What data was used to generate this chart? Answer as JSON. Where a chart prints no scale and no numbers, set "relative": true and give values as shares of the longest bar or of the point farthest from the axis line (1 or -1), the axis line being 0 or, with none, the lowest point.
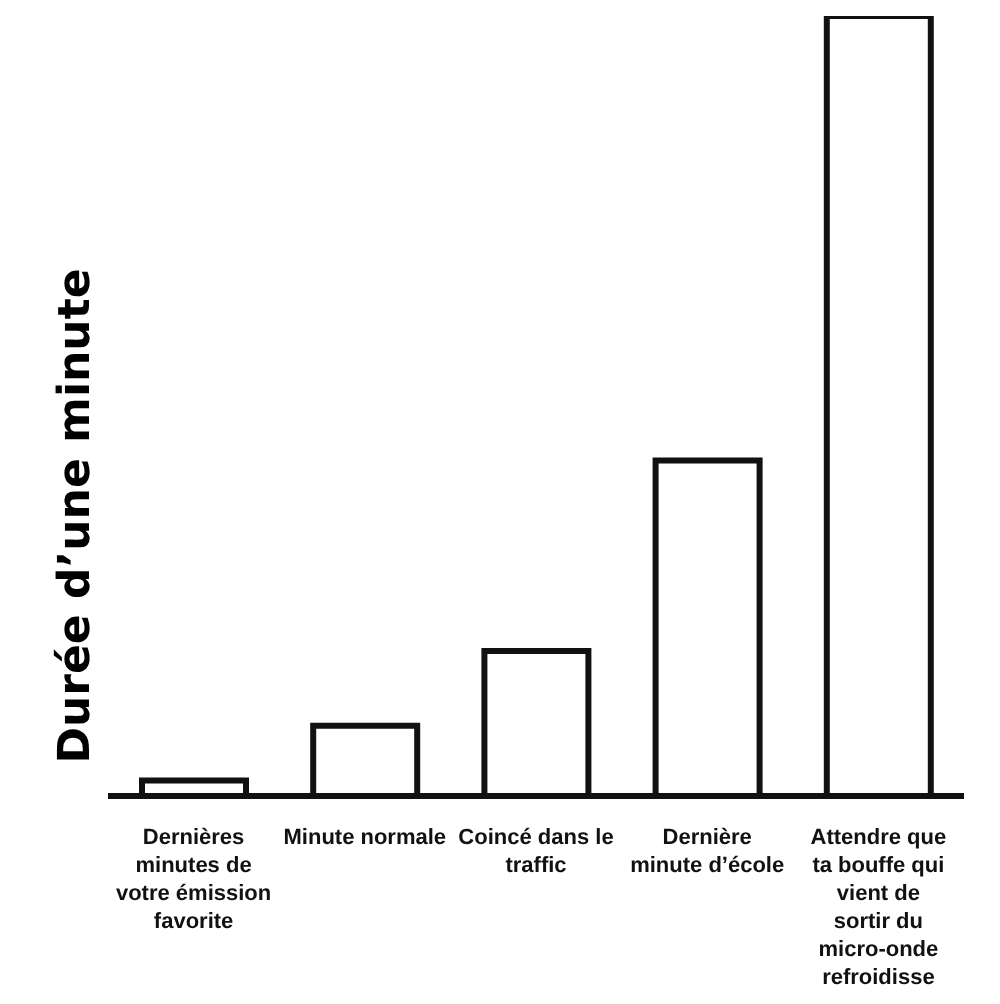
{
  "chart_data": {
    "type": "bar",
    "ylabel": "Durée d’une minute",
    "relative": true,
    "categories": [
      "Dernières minutes de votre émission favorite",
      "Minute normale",
      "Coincé dans le traffic",
      "Dernière minute d’école",
      "Attendre que ta bouffe qui vient de sortir du micro-onde refroidisse"
    ],
    "values": [
      0.02,
      0.09,
      0.186,
      0.43,
      1
    ],
    "color": "#ffffff",
    "grid": false,
    "legend": false
  }
}
